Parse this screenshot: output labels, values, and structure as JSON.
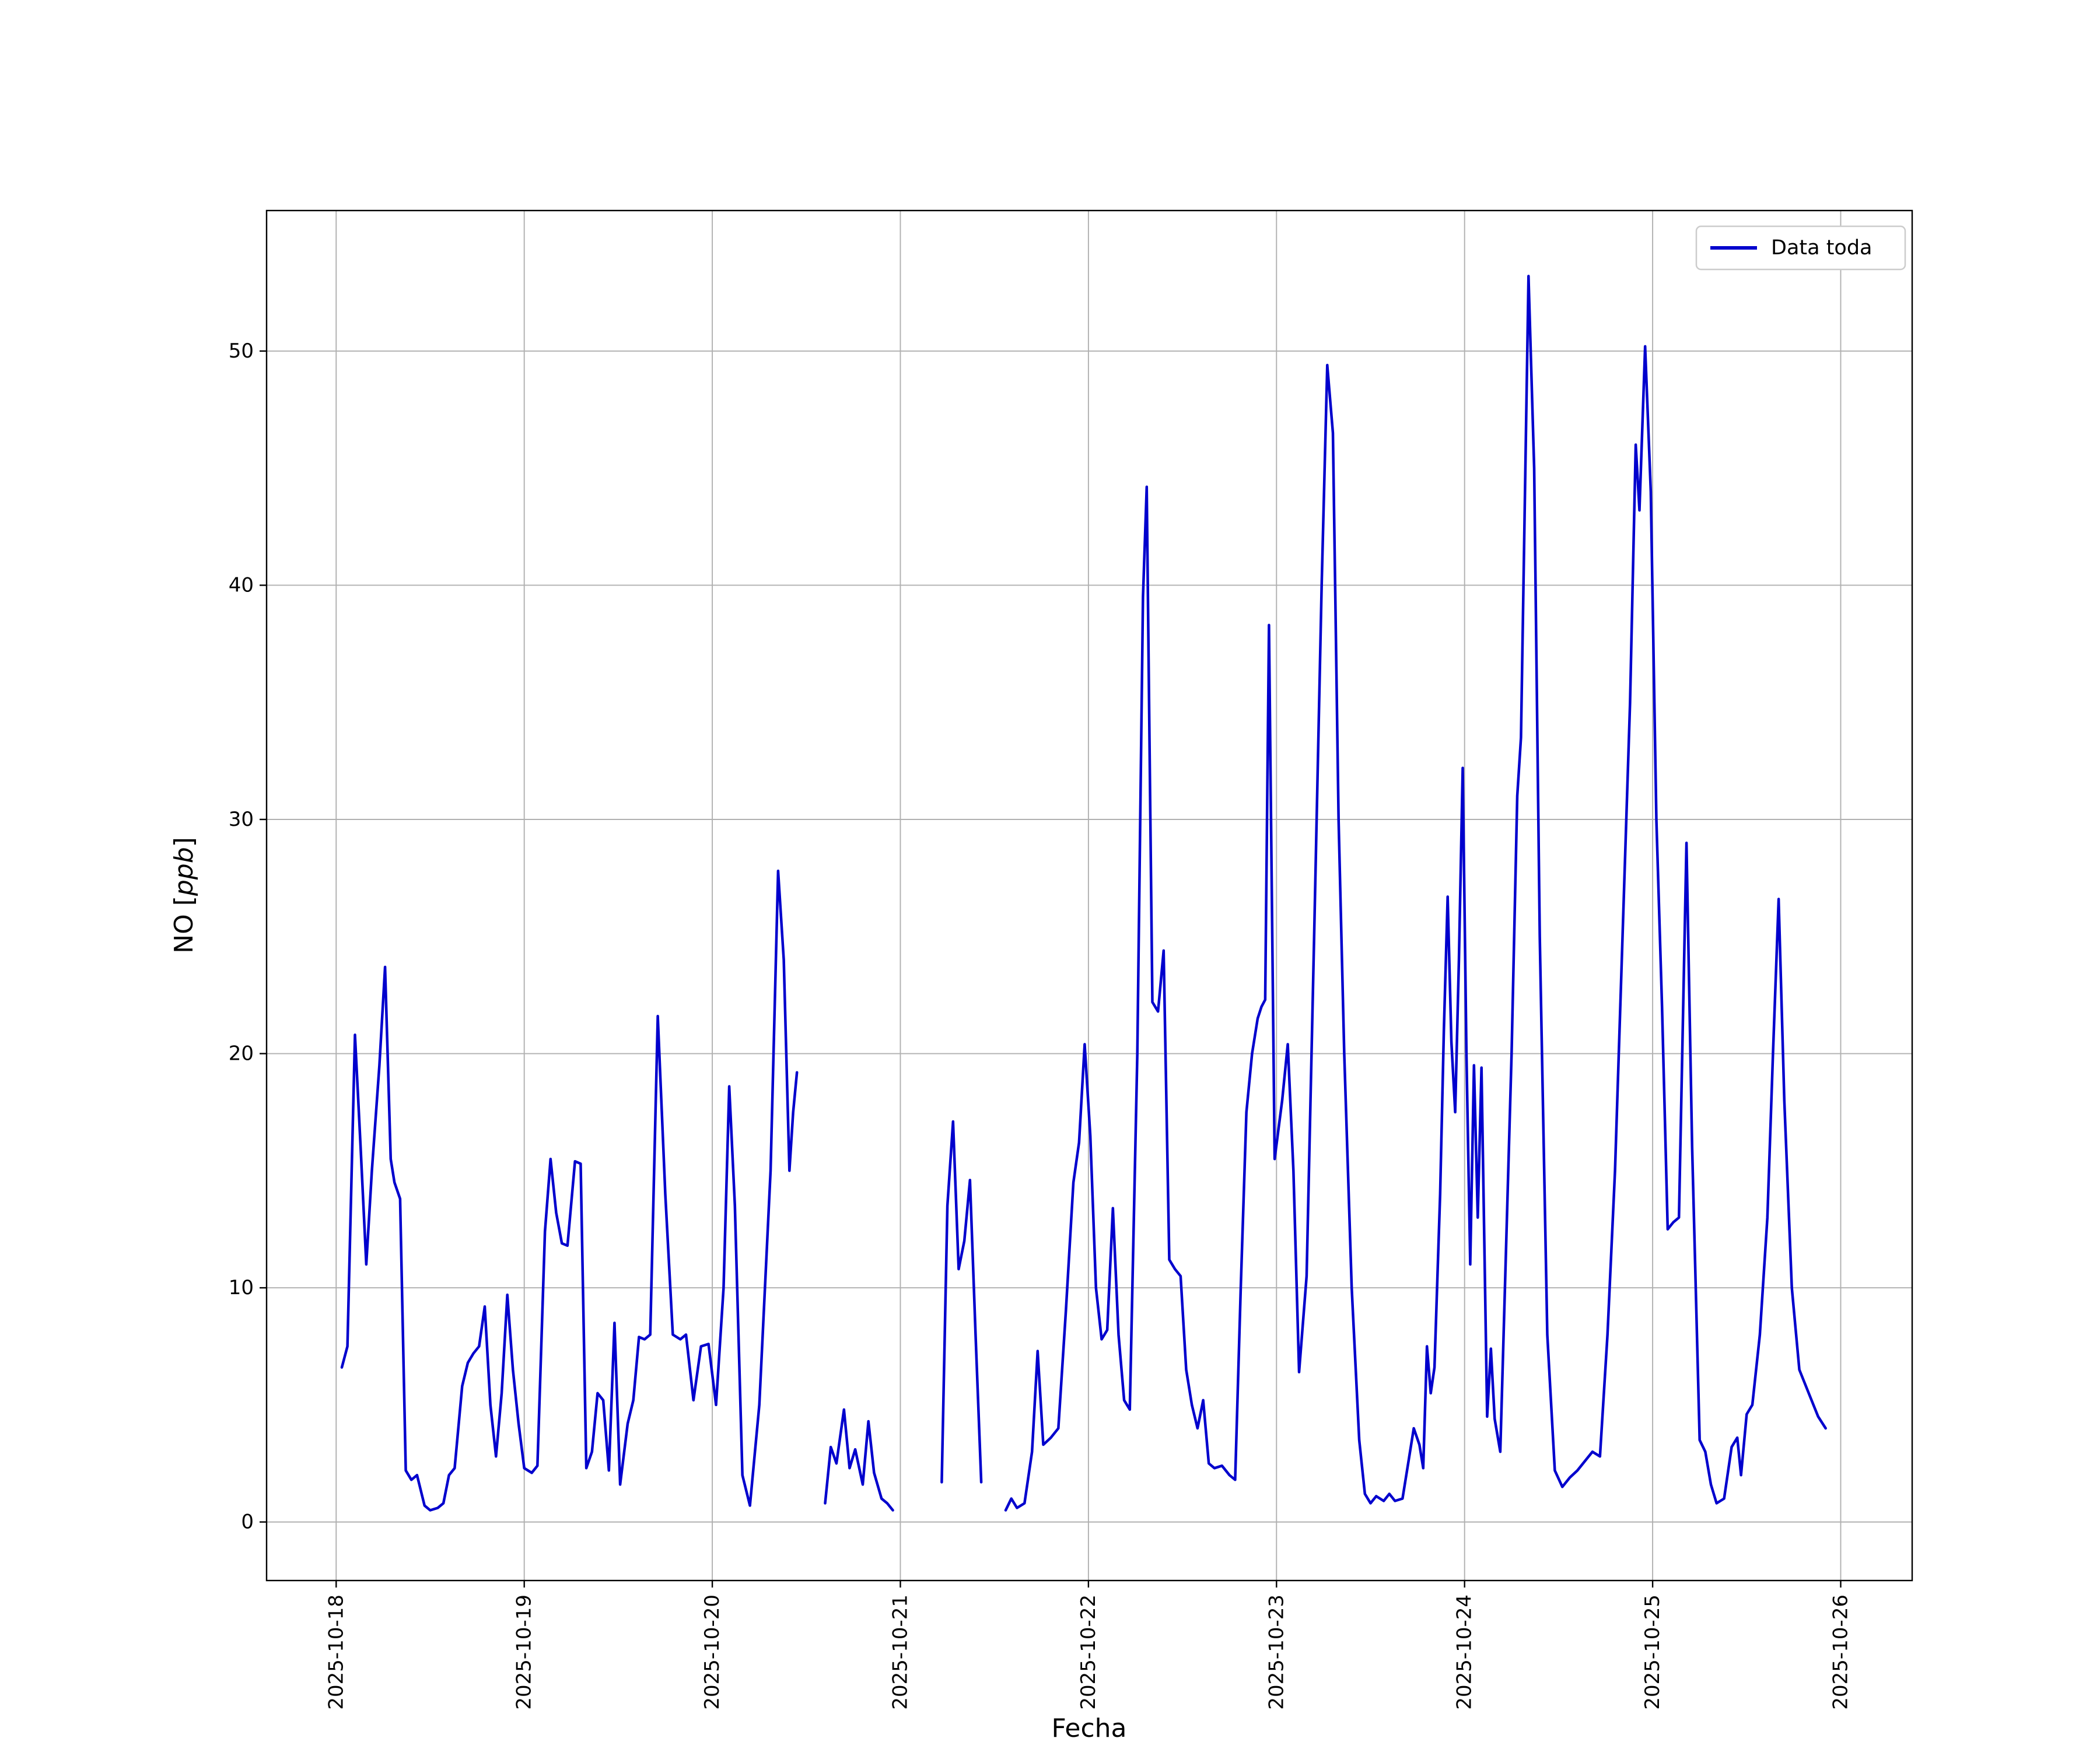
{
  "figure": {
    "background": "#ffffff",
    "line_color": "#0000cd",
    "grid_color": "#b0b0b0",
    "axis_color": "#000000",
    "xlabel": "Fecha",
    "ylabel_prefix": "NO [",
    "ylabel_italic": "ppb",
    "ylabel_suffix": "]",
    "legend": {
      "label": "Data toda"
    }
  },
  "chart_data": {
    "type": "line",
    "title": "",
    "xlabel": "Fecha",
    "ylabel": "NO [ppb]",
    "grid": true,
    "legend_position": "upper right",
    "legend_entries": [
      "Data toda"
    ],
    "x_unit": "days since 2025-10-18 00:00 (fractional)",
    "x_tick_positions": [
      0,
      1,
      2,
      3,
      4,
      5,
      6,
      7,
      8
    ],
    "x_tick_labels": [
      "2025-10-18",
      "2025-10-19",
      "2025-10-20",
      "2025-10-21",
      "2025-10-22",
      "2025-10-23",
      "2025-10-24",
      "2025-10-25",
      "2025-10-26"
    ],
    "y_ticks": [
      0,
      10,
      20,
      30,
      40,
      50
    ],
    "y_tick_labels": [
      "0",
      "10",
      "20",
      "30",
      "40",
      "50"
    ],
    "xlim": [
      -0.37,
      8.38
    ],
    "ylim": [
      -2.5,
      56
    ],
    "series": [
      {
        "name": "Data toda",
        "color": "#0000cd",
        "segments": [
          [
            [
              0.03,
              6.6
            ],
            [
              0.06,
              7.5
            ],
            [
              0.1,
              20.8
            ],
            [
              0.13,
              16.0
            ],
            [
              0.16,
              11.0
            ],
            [
              0.19,
              15.0
            ],
            [
              0.23,
              19.5
            ],
            [
              0.26,
              23.7
            ],
            [
              0.29,
              15.5
            ],
            [
              0.31,
              14.5
            ],
            [
              0.34,
              13.8
            ],
            [
              0.37,
              2.2
            ],
            [
              0.4,
              1.8
            ],
            [
              0.43,
              2.0
            ],
            [
              0.47,
              0.7
            ],
            [
              0.5,
              0.5
            ],
            [
              0.54,
              0.6
            ],
            [
              0.57,
              0.8
            ],
            [
              0.6,
              2.0
            ],
            [
              0.63,
              2.3
            ],
            [
              0.67,
              5.8
            ],
            [
              0.7,
              6.8
            ],
            [
              0.73,
              7.2
            ],
            [
              0.76,
              7.5
            ],
            [
              0.79,
              9.2
            ],
            [
              0.82,
              5.0
            ],
            [
              0.85,
              2.8
            ],
            [
              0.88,
              5.5
            ],
            [
              0.91,
              9.7
            ],
            [
              0.94,
              6.5
            ],
            [
              0.97,
              4.2
            ],
            [
              1.0,
              2.3
            ],
            [
              1.04,
              2.1
            ],
            [
              1.07,
              2.4
            ],
            [
              1.11,
              12.4
            ],
            [
              1.14,
              15.5
            ],
            [
              1.17,
              13.2
            ],
            [
              1.2,
              11.9
            ],
            [
              1.23,
              11.8
            ],
            [
              1.27,
              15.4
            ],
            [
              1.3,
              15.3
            ],
            [
              1.33,
              2.3
            ],
            [
              1.36,
              3.0
            ],
            [
              1.39,
              5.5
            ],
            [
              1.42,
              5.2
            ],
            [
              1.45,
              2.2
            ],
            [
              1.48,
              8.5
            ],
            [
              1.51,
              1.6
            ],
            [
              1.55,
              4.2
            ],
            [
              1.58,
              5.2
            ],
            [
              1.61,
              7.9
            ],
            [
              1.64,
              7.8
            ],
            [
              1.67,
              8.0
            ],
            [
              1.71,
              21.6
            ],
            [
              1.75,
              14.0
            ],
            [
              1.79,
              8.0
            ],
            [
              1.83,
              7.8
            ],
            [
              1.86,
              8.0
            ],
            [
              1.9,
              5.2
            ],
            [
              1.94,
              7.5
            ],
            [
              1.98,
              7.6
            ],
            [
              2.02,
              5.0
            ],
            [
              2.06,
              10.0
            ],
            [
              2.09,
              18.6
            ],
            [
              2.12,
              13.5
            ],
            [
              2.16,
              2.0
            ],
            [
              2.2,
              0.7
            ],
            [
              2.25,
              5.0
            ],
            [
              2.31,
              15.0
            ],
            [
              2.35,
              27.8
            ],
            [
              2.38,
              24.0
            ],
            [
              2.41,
              15.0
            ],
            [
              2.43,
              17.5
            ],
            [
              2.45,
              19.2
            ]
          ],
          [
            [
              2.6,
              0.8
            ],
            [
              2.63,
              3.2
            ],
            [
              2.66,
              2.5
            ],
            [
              2.7,
              4.8
            ],
            [
              2.73,
              2.3
            ],
            [
              2.76,
              3.1
            ],
            [
              2.8,
              1.6
            ],
            [
              2.83,
              4.3
            ],
            [
              2.86,
              2.1
            ],
            [
              2.9,
              1.0
            ],
            [
              2.93,
              0.8
            ],
            [
              2.96,
              0.5
            ]
          ],
          [
            [
              3.22,
              1.7
            ],
            [
              3.25,
              13.5
            ],
            [
              3.28,
              17.1
            ],
            [
              3.31,
              10.8
            ],
            [
              3.34,
              12.0
            ],
            [
              3.37,
              14.6
            ],
            [
              3.4,
              8.0
            ],
            [
              3.43,
              1.7
            ]
          ],
          [
            [
              3.56,
              0.5
            ],
            [
              3.59,
              1.0
            ],
            [
              3.62,
              0.6
            ],
            [
              3.66,
              0.8
            ],
            [
              3.7,
              3.0
            ],
            [
              3.73,
              7.3
            ],
            [
              3.76,
              3.3
            ],
            [
              3.8,
              3.6
            ],
            [
              3.84,
              4.0
            ],
            [
              3.88,
              9.0
            ],
            [
              3.92,
              14.5
            ],
            [
              3.95,
              16.2
            ],
            [
              3.98,
              20.4
            ],
            [
              4.01,
              16.5
            ],
            [
              4.04,
              10.0
            ],
            [
              4.07,
              7.8
            ],
            [
              4.1,
              8.2
            ],
            [
              4.13,
              13.4
            ],
            [
              4.16,
              8.0
            ],
            [
              4.19,
              5.2
            ],
            [
              4.22,
              4.8
            ],
            [
              4.26,
              20.0
            ],
            [
              4.29,
              39.5
            ],
            [
              4.31,
              44.2
            ],
            [
              4.34,
              22.2
            ],
            [
              4.37,
              21.8
            ],
            [
              4.4,
              24.4
            ],
            [
              4.43,
              11.2
            ],
            [
              4.46,
              10.8
            ],
            [
              4.49,
              10.5
            ],
            [
              4.52,
              6.5
            ],
            [
              4.55,
              5.0
            ],
            [
              4.58,
              4.0
            ],
            [
              4.61,
              5.2
            ],
            [
              4.64,
              2.5
            ],
            [
              4.67,
              2.3
            ],
            [
              4.71,
              2.4
            ],
            [
              4.75,
              2.0
            ],
            [
              4.78,
              1.8
            ],
            [
              4.81,
              10.0
            ],
            [
              4.84,
              17.5
            ],
            [
              4.87,
              20.0
            ],
            [
              4.9,
              21.5
            ],
            [
              4.92,
              22.0
            ],
            [
              4.94,
              22.3
            ],
            [
              4.96,
              38.3
            ],
            [
              4.99,
              15.5
            ],
            [
              5.03,
              18.0
            ],
            [
              5.06,
              20.4
            ],
            [
              5.09,
              15.0
            ],
            [
              5.12,
              6.4
            ],
            [
              5.16,
              10.5
            ],
            [
              5.2,
              25.0
            ],
            [
              5.24,
              40.0
            ],
            [
              5.27,
              49.4
            ],
            [
              5.3,
              46.5
            ],
            [
              5.33,
              30.0
            ],
            [
              5.36,
              20.0
            ],
            [
              5.4,
              10.0
            ],
            [
              5.44,
              3.5
            ],
            [
              5.47,
              1.2
            ],
            [
              5.5,
              0.8
            ],
            [
              5.53,
              1.1
            ],
            [
              5.57,
              0.9
            ],
            [
              5.6,
              1.2
            ],
            [
              5.63,
              0.9
            ],
            [
              5.67,
              1.0
            ],
            [
              5.7,
              2.5
            ],
            [
              5.73,
              4.0
            ],
            [
              5.76,
              3.3
            ],
            [
              5.78,
              2.3
            ],
            [
              5.8,
              7.5
            ],
            [
              5.82,
              5.5
            ],
            [
              5.84,
              6.6
            ],
            [
              5.87,
              14.0
            ],
            [
              5.89,
              21.0
            ],
            [
              5.91,
              26.7
            ],
            [
              5.93,
              20.5
            ],
            [
              5.95,
              17.5
            ],
            [
              5.97,
              24.0
            ],
            [
              5.99,
              32.2
            ],
            [
              6.01,
              20.0
            ],
            [
              6.03,
              11.0
            ],
            [
              6.05,
              19.5
            ],
            [
              6.07,
              13.0
            ],
            [
              6.09,
              19.4
            ],
            [
              6.12,
              4.5
            ],
            [
              6.14,
              7.4
            ],
            [
              6.16,
              4.4
            ],
            [
              6.19,
              3.0
            ],
            [
              6.25,
              20.0
            ],
            [
              6.28,
              31.0
            ],
            [
              6.3,
              33.5
            ],
            [
              6.34,
              53.2
            ],
            [
              6.37,
              45.0
            ],
            [
              6.4,
              25.0
            ],
            [
              6.44,
              8.0
            ],
            [
              6.48,
              2.2
            ],
            [
              6.52,
              1.5
            ],
            [
              6.56,
              1.9
            ],
            [
              6.6,
              2.2
            ],
            [
              6.64,
              2.6
            ],
            [
              6.68,
              3.0
            ],
            [
              6.72,
              2.8
            ],
            [
              6.76,
              8.0
            ],
            [
              6.8,
              15.0
            ],
            [
              6.84,
              25.0
            ],
            [
              6.88,
              35.0
            ],
            [
              6.91,
              46.0
            ],
            [
              6.93,
              43.2
            ],
            [
              6.96,
              50.2
            ],
            [
              6.99,
              44.0
            ],
            [
              7.02,
              30.0
            ],
            [
              7.05,
              22.0
            ],
            [
              7.08,
              12.5
            ],
            [
              7.11,
              12.8
            ],
            [
              7.14,
              13.0
            ],
            [
              7.18,
              29.0
            ],
            [
              7.21,
              16.0
            ],
            [
              7.25,
              3.5
            ],
            [
              7.28,
              3.0
            ],
            [
              7.31,
              1.6
            ],
            [
              7.34,
              0.8
            ],
            [
              7.38,
              1.0
            ],
            [
              7.42,
              3.2
            ],
            [
              7.45,
              3.6
            ],
            [
              7.47,
              2.0
            ],
            [
              7.5,
              4.6
            ],
            [
              7.53,
              5.0
            ],
            [
              7.57,
              8.0
            ],
            [
              7.61,
              13.0
            ],
            [
              7.64,
              20.0
            ],
            [
              7.67,
              26.6
            ],
            [
              7.7,
              18.0
            ],
            [
              7.74,
              10.0
            ],
            [
              7.78,
              6.5
            ],
            [
              7.83,
              5.5
            ],
            [
              7.88,
              4.5
            ],
            [
              7.92,
              4.0
            ]
          ]
        ]
      }
    ]
  }
}
